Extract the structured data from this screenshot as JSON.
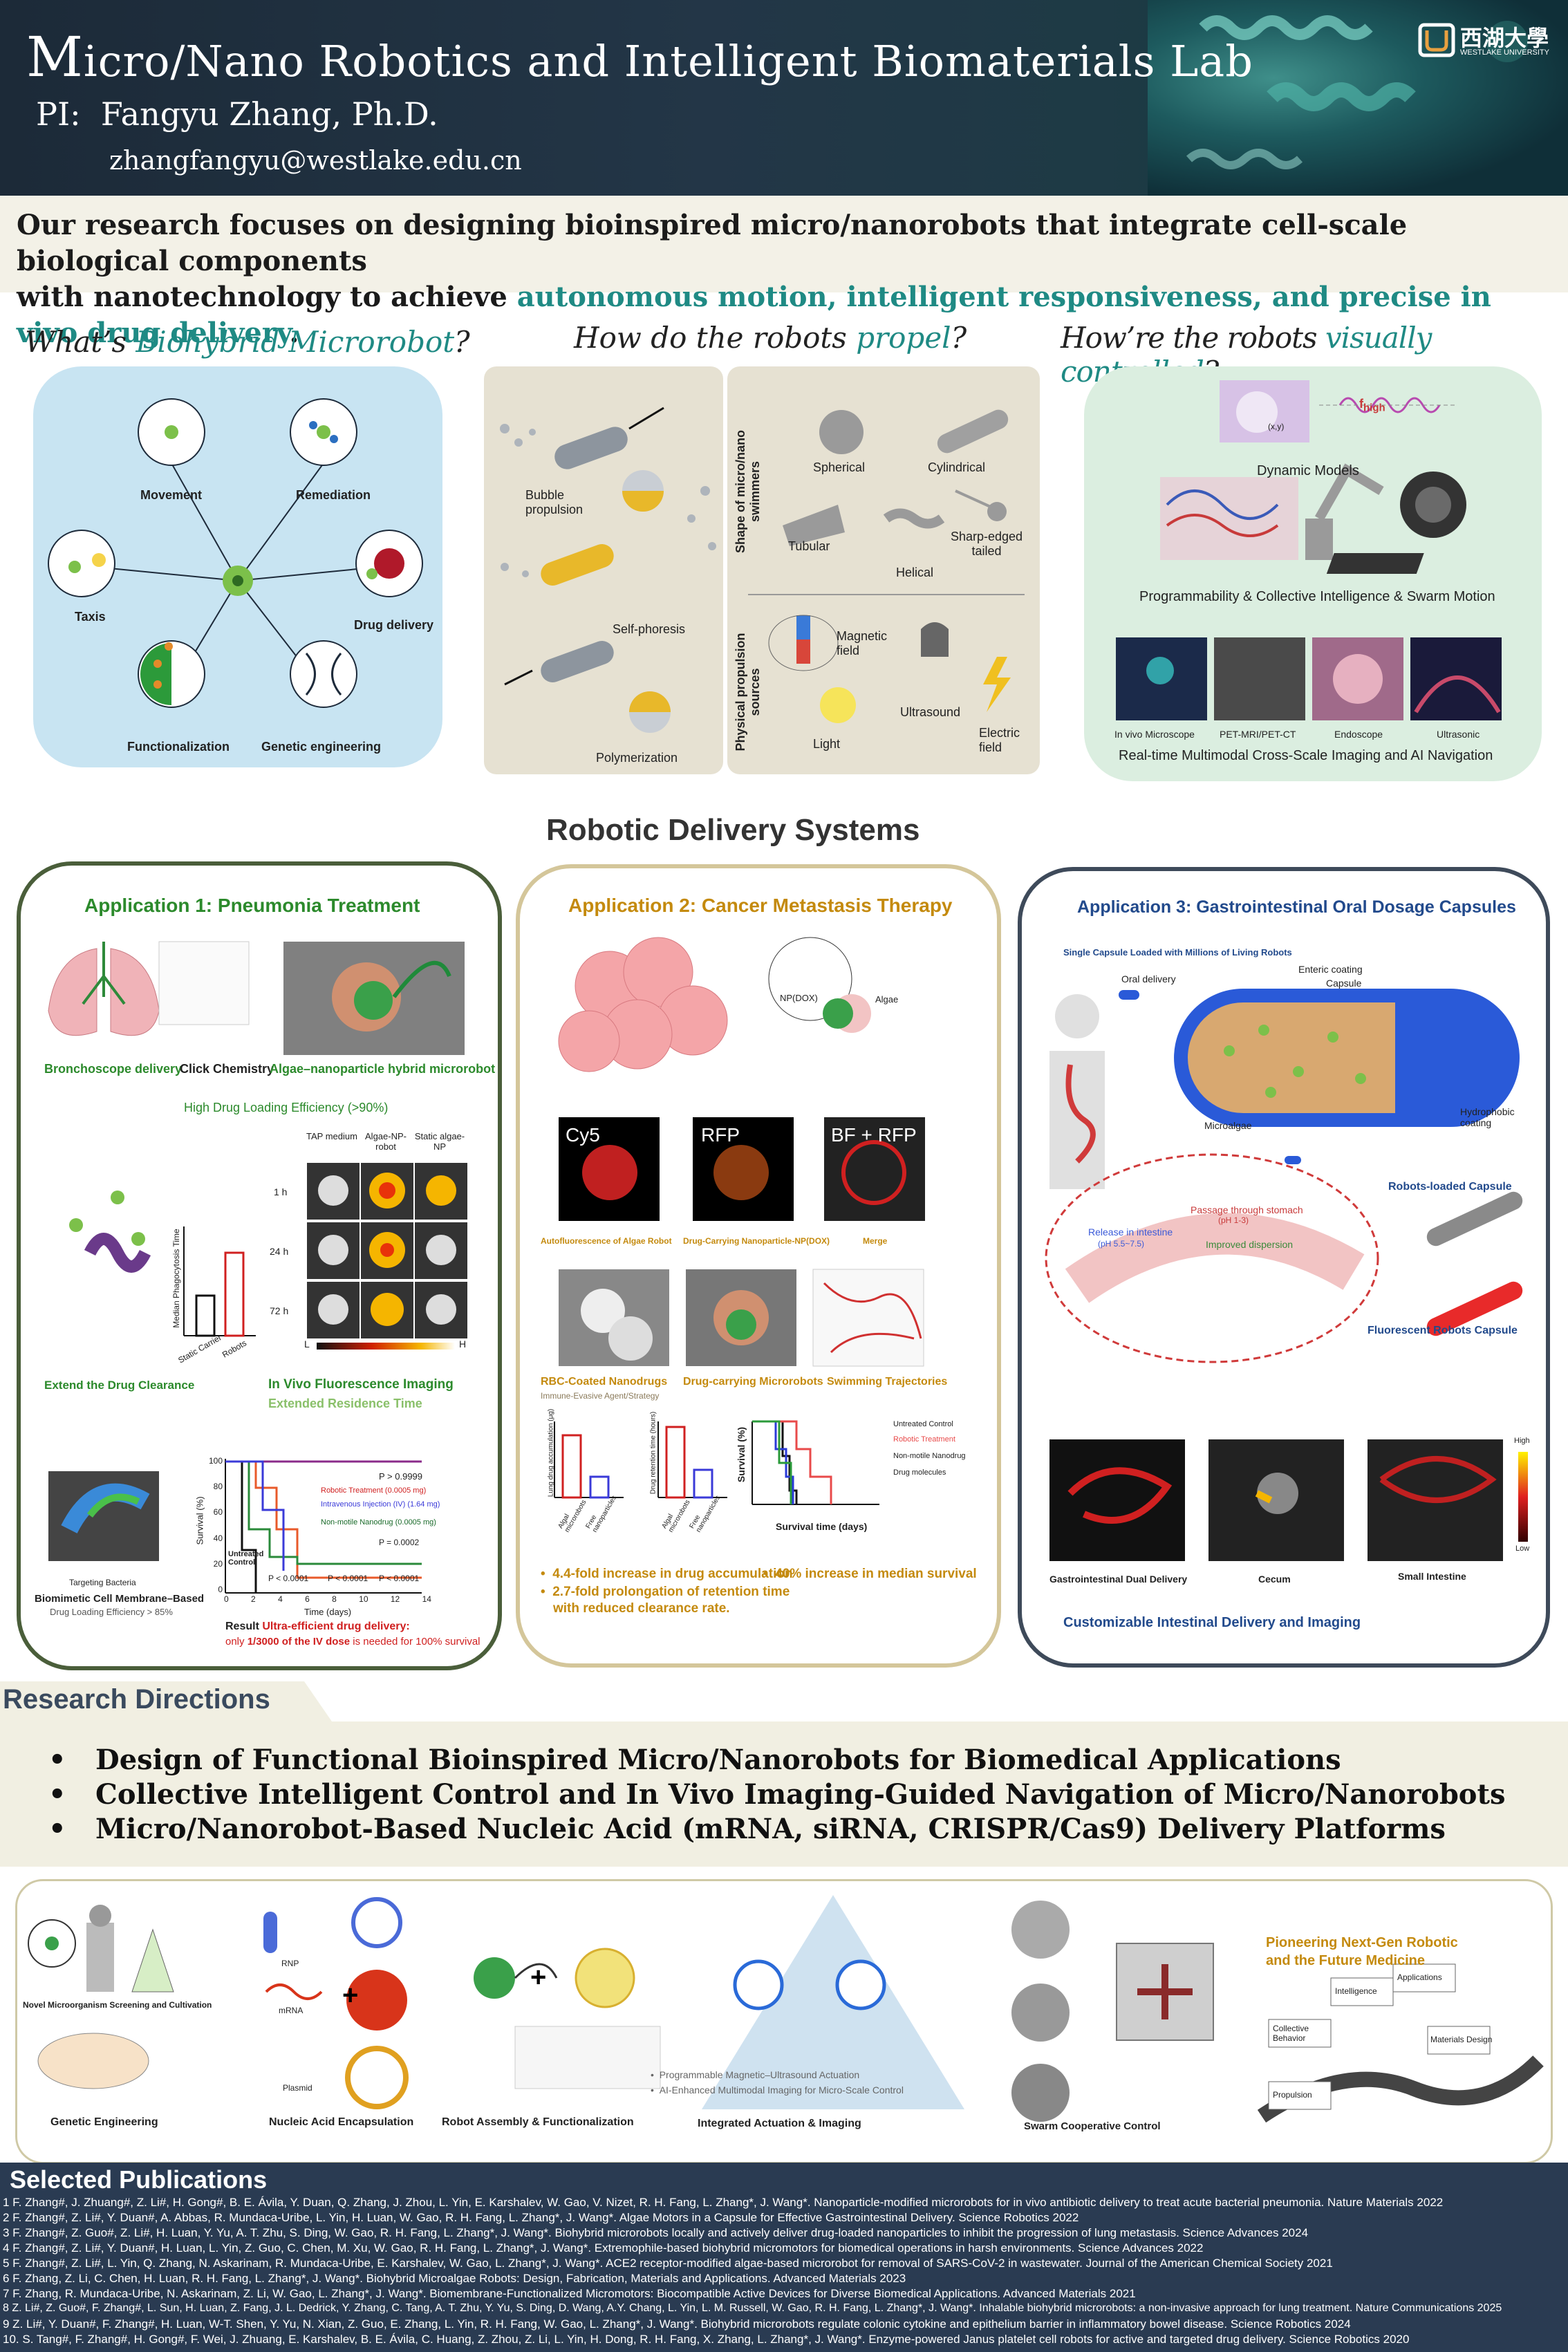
{
  "header": {
    "title_initial": "M",
    "title_rest": "icro/Nano Robotics and Intelligent Biomaterials Lab",
    "pi_label": "PI:",
    "pi_name": "Fangyu Zhang, Ph.D.",
    "email": "zhangfangyu@westlake.edu.cn",
    "logo_cn": "西湖大學",
    "logo_en": "WESTLAKE UNIVERSITY"
  },
  "intro": {
    "line1": "Our research focuses on designing bioinspired micro/nanorobots that integrate cell-scale biological components",
    "line2_start": "with nanotechnology to achieve ",
    "line2_highlight": "autonomous motion, intelligent responsiveness, and precise in vivo drug delivery",
    "line2_end": "."
  },
  "section_titles": {
    "biohybrid_a": "What’s ",
    "biohybrid_b": "Biohybrid Microrobot",
    "biohybrid_c": "?",
    "propel_a": "How do the robots ",
    "propel_b": "propel",
    "propel_c": "?",
    "visual_a": "How’re the robots ",
    "visual_b": "visually controlled",
    "visual_c": "?"
  },
  "biohybrid_labels": [
    "Movement",
    "Remediation",
    "Taxis",
    "Drug delivery",
    "Functionalization",
    "Genetic engineering"
  ],
  "propel": {
    "left": [
      "Bubble propulsion",
      "Self-phoresis",
      "Polymerization"
    ],
    "shape_axis": "Shape of micro/nano swimmers",
    "shapes": [
      "Spherical",
      "Cylindrical",
      "Tubular",
      "Helical",
      "Sharp-edged tailed"
    ],
    "source_axis": "Physical propulsion sources",
    "sources": [
      "Magnetic field",
      "Ultrasound",
      "Light",
      "Electric field"
    ]
  },
  "visual": {
    "dynamic": "Dynamic Models",
    "fhigh": "f",
    "fhigh_sub": "high",
    "xy": "(x,y)",
    "programmability": "Programmability & Collective Intelligence & Swarm Motion",
    "imaging": [
      "In vivo Microscope",
      "PET-MRI/PET-CT",
      "Endoscope",
      "Ultrasonic"
    ],
    "imaging_caption": "Real-time Multimodal Cross-Scale Imaging and AI Navigation"
  },
  "robotic_title": "Robotic Delivery Systems",
  "app1": {
    "title": "Application 1: Pneumonia Treatment",
    "labels": [
      "Bronchoscope delivery",
      "Click Chemistry",
      "Algae–nanoparticle hybrid microrobot"
    ],
    "loading": "High Drug Loading Efficiency (>90%)",
    "cols": [
      "TAP medium",
      "Algae-NP-robot",
      "Static algae-NP"
    ],
    "rows": [
      "1 h",
      "24 h",
      "72 h"
    ],
    "ylabel": "Median Phagocytosis Time",
    "bar_x": [
      "Static Carrier",
      "Robots"
    ],
    "extend": "Extend the Drug Clearance",
    "invivo": "In Vivo Fluorescence Imaging",
    "extended": "Extended Residence Time",
    "targeting": "Targeting Bacteria",
    "biomimetic": "Biomimetic Cell Membrane–Based",
    "biomimetic2": "Drug Loading Efficiency > 85%",
    "p1": "P > 0.9999",
    "legend": [
      "Robotic Treatment (0.0005 mg)",
      "Intravenous Injection (IV) (1.64 mg)",
      "Non-motile Nanodrug (0.0005 mg)"
    ],
    "untreated": "Untreated Control",
    "p2": "P = 0.0002",
    "p3": "P < 0.0001",
    "p4": "P < 0.0001",
    "p5": "P < 0.0001",
    "surv_y": "Survival (%)",
    "surv_x": "Time (days)",
    "surv_ticks": [
      "0",
      "2",
      "4",
      "6",
      "8",
      "10",
      "12",
      "14"
    ],
    "surv_yticks": [
      "100",
      "80",
      "60",
      "40",
      "20",
      "0"
    ],
    "result_label": "Result",
    "result_red": " Ultra-efficient drug delivery:",
    "result2_a": "only ",
    "result2_b": "1/3000 of the IV dose",
    "result2_c": " is needed for 100% survival",
    "heat_h": "H",
    "heat_l": "L"
  },
  "app2": {
    "title": "Application 2: Cancer Metastasis Therapy",
    "npdox": "NP(DOX)",
    "algae": "Algae",
    "panels": [
      "Cy5",
      "RFP",
      "BF + RFP"
    ],
    "captions": [
      "Autofluorescence of Algae Robot",
      "Drug-Carrying Nanoparticle-NP(DOX)",
      "Merge"
    ],
    "row2": [
      "RBC-Coated Nanodrugs",
      "Drug-carrying Microrobots",
      "Swimming Trajectories"
    ],
    "immune": "Immune-Evasive Agent/Strategy",
    "legend": [
      "Untreated Control",
      "Robotic Treatment",
      "Non-motile Nanodrug",
      "Drug molecules"
    ],
    "surv_x": "Survival time (days)",
    "surv_y": "Survival (%)",
    "bar1_y": "Lung drug accumulation (μg)",
    "bar2_y": "Drug retention time (hours)",
    "bar_x": [
      "Algal microrobots",
      "Free nanoparticles"
    ],
    "bullets": [
      "4.4-fold increase in drug accumulation",
      "2.7-fold prolongation of retention time",
      "with reduced clearance rate.",
      "40% increase in median survival"
    ]
  },
  "app3": {
    "title": "Application 3: Gastrointestinal Oral Dosage Capsules",
    "subtitle": "Single Capsule Loaded with Millions of Living Robots",
    "labels": [
      "Oral delivery",
      "Enteric coating",
      "Capsule",
      "Microalgae",
      "Hydrophobic coating"
    ],
    "stomach": "Passage through stomach",
    "stomach_ph": "(pH 1-3)",
    "intestine": "Release in intestine",
    "intestine_ph": "(pH 5.5~7.5)",
    "dispersion": "Improved dispersion",
    "loaded": "Robots-loaded Capsule",
    "fluor": "Fluorescent Robots Capsule",
    "gi": [
      "Gastrointestinal Dual Delivery",
      "Cecum",
      "Small Intestine"
    ],
    "high": "High",
    "low": "Low",
    "custom": "Customizable Intestinal Delivery and Imaging"
  },
  "research": {
    "head": "Research Directions",
    "items": [
      "Design of Functional Bioinspired Micro/Nanorobots for Biomedical Applications",
      "Collective Intelligent Control and In Vivo Imaging-Guided Navigation of Micro/Nanorobots",
      "Micro/Nanorobot-Based Nucleic Acid (mRNA, siRNA, CRISPR/Cas9) Delivery Platforms"
    ]
  },
  "bottom": {
    "novel": "Novel Microorganism Screening and Cultivation",
    "genetic": "Genetic Engineering",
    "nucleic": "Nucleic Acid Encapsulation",
    "rnp": "RNP",
    "mrna": "mRNA",
    "plasmid": "Plasmid",
    "assembly": "Robot Assembly & Functionalization",
    "actuation_b1": "Programmable Magnetic–Ultrasound Actuation",
    "actuation_b2": "AI-Enhanced Multimodal Imaging for Micro-Scale Control",
    "integrated": "Integrated Actuation & Imaging",
    "swarm": "Swarm Cooperative Control",
    "pioneer1": "Pioneering Next-Gen Robotic",
    "pioneer2": "and the Future Medicine",
    "road": [
      "Intelligence",
      "Applications",
      "Collective Behavior",
      "Materials Design",
      "Propulsion"
    ]
  },
  "publications": {
    "head": "Selected Publications",
    "items": [
      "1  F. Zhang#, J. Zhuang#, Z. Li#, H. Gong#, B. E. Ávila, Y. Duan, Q. Zhang, J. Zhou, L. Yin, E. Karshalev, W. Gao, V. Nizet, R. H. Fang, L. Zhang*, J. Wang*. Nanoparticle-modified microrobots for in vivo antibiotic delivery to treat acute bacterial pneumonia. Nature Materials 2022",
      "2  F. Zhang#, Z. Li#, Y. Duan#, A. Abbas, R. Mundaca-Uribe, L. Yin, H. Luan, W. Gao, R. H. Fang, L. Zhang*, J. Wang*. Algae Motors in a Capsule for Effective Gastrointestinal Delivery. Science Robotics 2022",
      "3  F. Zhang#, Z. Guo#, Z. Li#, H. Luan, Y. Yu, A. T. Zhu, S. Ding, W. Gao, R. H. Fang, L. Zhang*, J. Wang*. Biohybrid microrobots locally and actively deliver drug-loaded nanoparticles to inhibit the progression of lung metastasis. Science Advances 2024",
      "4  F. Zhang#, Z. Li#, Y. Duan#, H. Luan, L. Yin, Z. Guo, C. Chen, M. Xu, W. Gao, R. H. Fang, L. Zhang*, J. Wang*. Extremophile-based biohybrid micromotors for biomedical operations in harsh environments. Science Advances 2022",
      "5  F. Zhang#, Z. Li#, L. Yin, Q. Zhang, N. Askarinam, R. Mundaca-Uribe, E. Karshalev, W. Gao, L. Zhang*, J. Wang*. ACE2 receptor-modified algae-based microrobot for removal of SARS-CoV-2 in wastewater. Journal of the American Chemical Society 2021",
      "6  F. Zhang, Z. Li, C. Chen, H. Luan, R. H. Fang, L. Zhang*, J. Wang*. Biohybrid Microalgae Robots: Design, Fabrication, Materials and Applications. Advanced Materials 2023",
      "7  F. Zhang, R. Mundaca-Uribe, N. Askarinam, Z. Li, W. Gao, L. Zhang*, J. Wang*. Biomembrane-Functionalized Micromotors: Biocompatible Active Devices for Diverse Biomedical Applications. Advanced Materials 2021",
      "8  Z. Li#, Z. Guo#, F. Zhang#, L. Sun, H. Luan, Z. Fang, J. L. Dedrick, Y. Zhang, C. Tang, A. T. Zhu, Y. Yu, S. Ding, D. Wang, A.Y. Chang, L. Yin, L. M. Russell, W. Gao, R. H. Fang, L. Zhang*, J. Wang*. Inhalable biohybrid microrobots: a non-invasive approach for lung treatment. Nature Communications 2025",
      "9  Z. Li#, Y. Duan#, F. Zhang#, H. Luan, W-T. Shen, Y. Yu, N. Xian, Z. Guo, E. Zhang, L. Yin, R. H. Fang, W. Gao, L. Zhang*, J. Wang*. Biohybrid microrobots regulate colonic cytokine and epithelium barrier in inflammatory bowel disease. Science Robotics 2024",
      "10. S. Tang#, F. Zhang#, H. Gong#, F. Wei, J. Zhuang, E. Karshalev, B. E. Ávila, C. Huang, Z. Zhou, Z. Li, L. Yin, H. Dong, R. H. Fang, X. Zhang, L. Zhang*, J. Wang*. Enzyme-powered Janus platelet cell robots for active and targeted drug delivery. Science Robotics 2020"
    ]
  },
  "colors": {
    "header_bg": "#1c2a38",
    "teal": "#1f8a84",
    "green": "#2c8a2c",
    "gold": "#c48a0e",
    "blue": "#224a8c",
    "pub_bg": "#2a3b52"
  }
}
